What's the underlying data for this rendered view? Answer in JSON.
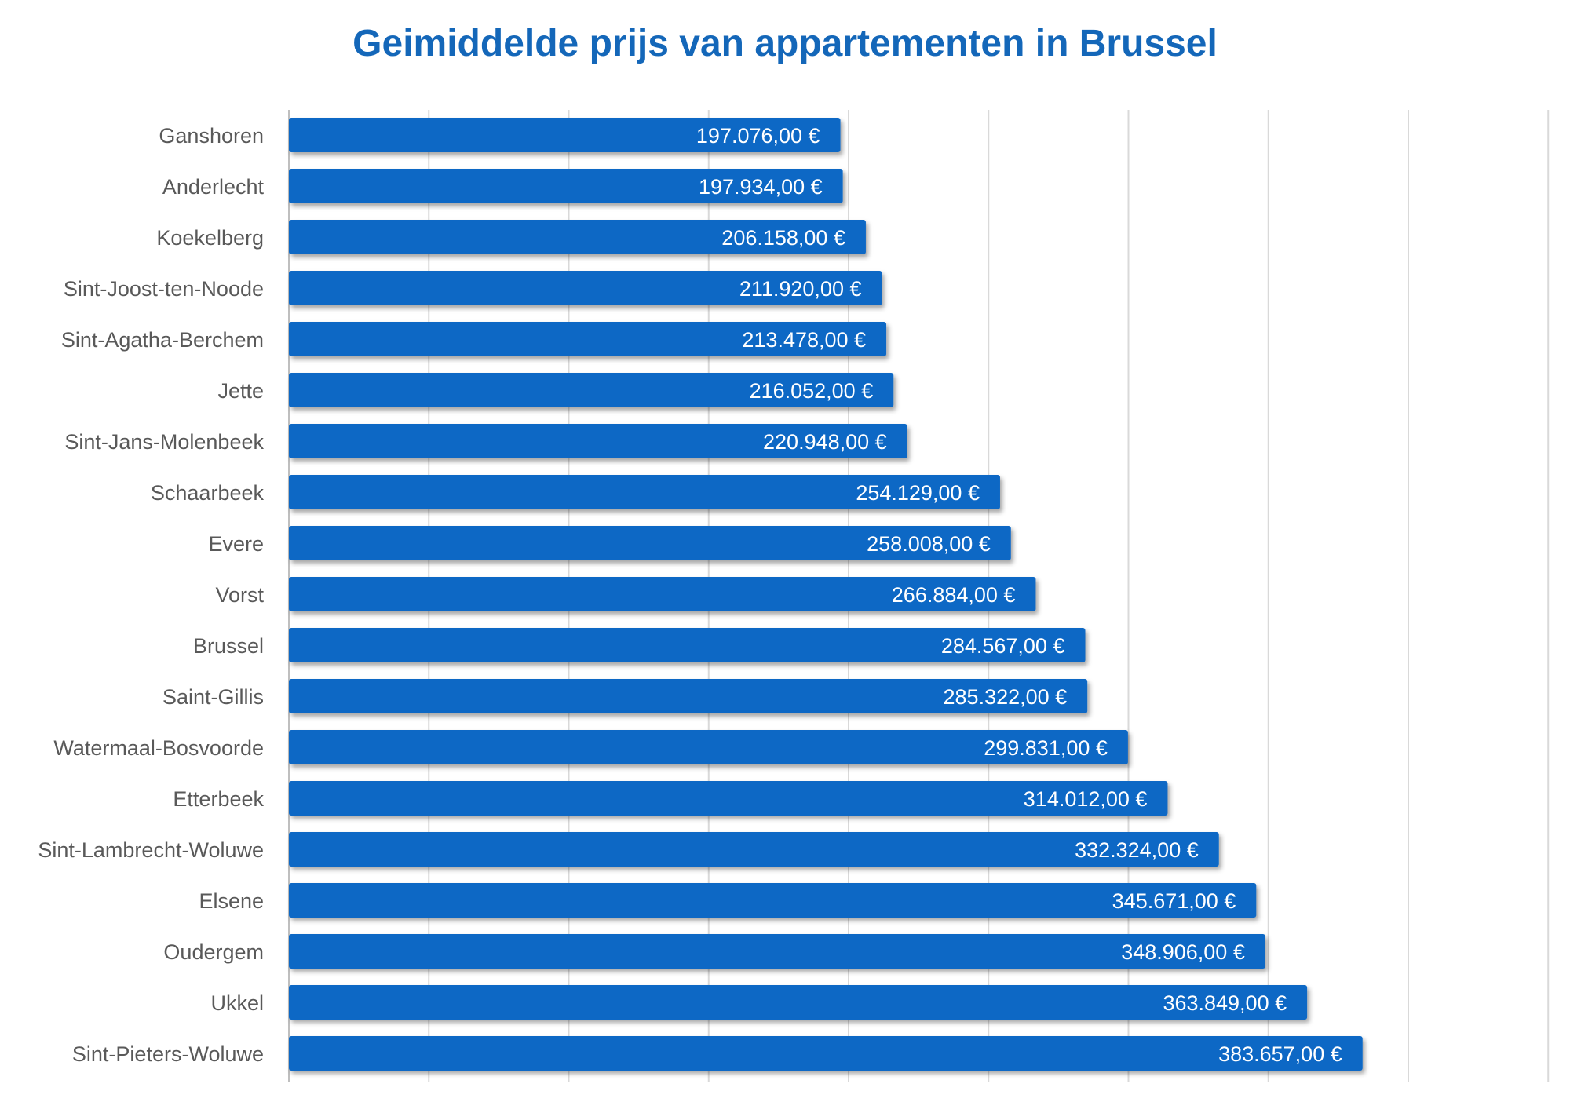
{
  "chart_data": {
    "type": "bar",
    "orientation": "horizontal",
    "title": "Geimiddelde prijs van appartementen in Brussel",
    "xlabel": "",
    "ylabel": "",
    "xlim": [
      0,
      450000
    ],
    "grid": true,
    "legend": "none",
    "bar_color": "#0d68c5",
    "categories": [
      "Ganshoren",
      "Anderlecht",
      "Koekelberg",
      "Sint-Joost-ten-Noode",
      "Sint-Agatha-Berchem",
      "Jette",
      "Sint-Jans-Molenbeek",
      "Schaarbeek",
      "Evere",
      "Vorst",
      "Brussel",
      "Saint-Gillis",
      "Watermaal-Bosvoorde",
      "Etterbeek",
      "Sint-Lambrecht-Woluwe",
      "Elsene",
      "Oudergem",
      "Ukkel",
      "Sint-Pieters-Woluwe"
    ],
    "values": [
      197076,
      197934,
      206158,
      211920,
      213478,
      216052,
      220948,
      254129,
      258008,
      266884,
      284567,
      285322,
      299831,
      314012,
      332324,
      345671,
      348906,
      363849,
      383657
    ],
    "value_labels": [
      "197.076,00 €",
      "197.934,00 €",
      "206.158,00 €",
      "211.920,00 €",
      "213.478,00 €",
      "216.052,00 €",
      "220.948,00 €",
      "254.129,00 €",
      "258.008,00 €",
      "266.884,00 €",
      "284.567,00 €",
      "285.322,00 €",
      "299.831,00 €",
      "314.012,00 €",
      "332.324,00 €",
      "345.671,00 €",
      "348.906,00 €",
      "363.849,00 €",
      "383.657,00 €"
    ]
  }
}
